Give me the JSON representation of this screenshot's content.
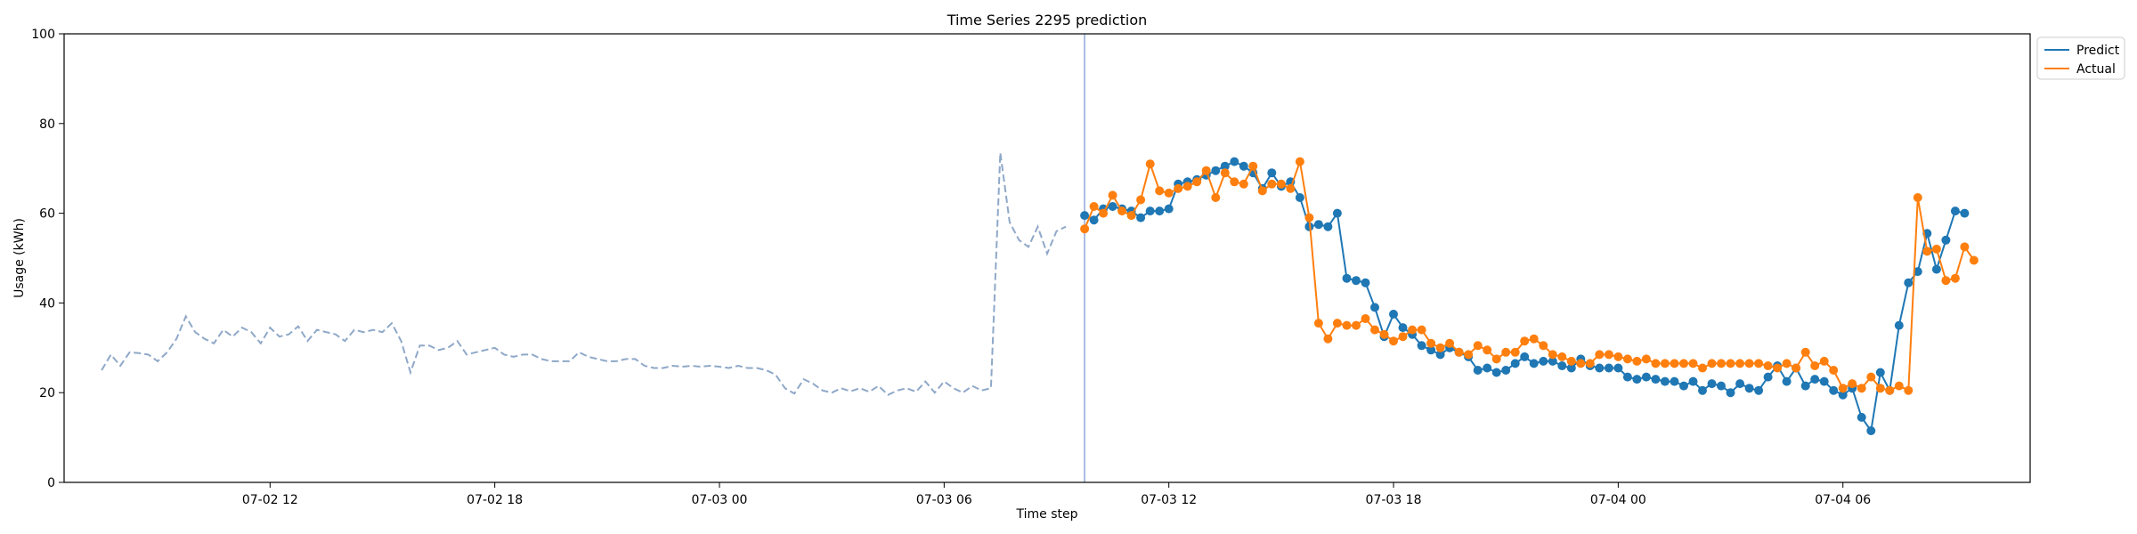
{
  "chart_data": {
    "type": "line",
    "title": "Time Series 2295 prediction",
    "xlabel": "Time step",
    "ylabel": "Usage (kWh)",
    "ylim": [
      0,
      100
    ],
    "yticks": [
      0,
      20,
      40,
      60,
      80,
      100
    ],
    "x_range": [
      "2024-07-02 06:30",
      "2024-07-04 11:00"
    ],
    "xticks": [
      {
        "t": "2024-07-02 12:00",
        "label": "07-02 12"
      },
      {
        "t": "2024-07-02 18:00",
        "label": "07-02 18"
      },
      {
        "t": "2024-07-03 00:00",
        "label": "07-03 00"
      },
      {
        "t": "2024-07-03 06:00",
        "label": "07-03 06"
      },
      {
        "t": "2024-07-03 12:00",
        "label": "07-03 12"
      },
      {
        "t": "2024-07-03 18:00",
        "label": "07-03 18"
      },
      {
        "t": "2024-07-04 00:00",
        "label": "07-04 00"
      },
      {
        "t": "2024-07-04 06:00",
        "label": "07-04 06"
      }
    ],
    "legend_position": "upper-right-outside",
    "grid": false,
    "forecast_start": "2024-07-03 09:45",
    "history": {
      "color": "#8fa8c8",
      "start": "2024-07-02 07:30",
      "step_minutes": 15,
      "values": [
        25,
        28.5,
        26,
        29,
        28.8,
        28.5,
        27,
        29,
        32,
        37,
        33.5,
        32,
        31,
        34,
        32.5,
        34.5,
        33.5,
        31,
        34.5,
        32.5,
        33,
        34.8,
        31.5,
        34,
        33.5,
        33,
        31.5,
        34,
        33.5,
        34,
        33.5,
        35.5,
        31.5,
        24.5,
        30.5,
        30.5,
        29.5,
        30,
        31.5,
        28.5,
        29,
        29.5,
        30,
        28.5,
        28,
        28.5,
        28.5,
        27.5,
        27,
        27,
        27,
        29,
        28,
        27.5,
        27,
        27,
        27.5,
        27.5,
        26,
        25.5,
        25.5,
        26,
        25.8,
        26,
        25.8,
        26,
        25.8,
        25.5,
        26,
        25.5,
        25.5,
        25,
        24,
        21,
        19.8,
        23,
        22,
        20.5,
        20,
        21,
        20.3,
        21,
        20.2,
        21.5,
        19.5,
        20.5,
        21,
        20.2,
        22.5,
        20,
        22.5,
        21,
        20,
        21.5,
        20.5,
        21,
        73.5,
        58,
        54,
        52.5,
        57,
        51,
        56,
        57
      ]
    },
    "series": [
      {
        "name": "Predict",
        "color": "#1f77b4",
        "start": "2024-07-03 09:45",
        "step_minutes": 15,
        "values": [
          59.5,
          58.5,
          61,
          61.5,
          61,
          60.5,
          59,
          60.5,
          60.5,
          61,
          66.5,
          67,
          67.5,
          68.5,
          69.5,
          70.5,
          71.5,
          70.5,
          69,
          65.5,
          69,
          66,
          67,
          63.5,
          57,
          57.5,
          57,
          60,
          45.5,
          45,
          44.5,
          39,
          32.5,
          37.5,
          34.5,
          33,
          30.5,
          29.5,
          28.5,
          30,
          29,
          28,
          25,
          25.5,
          24.5,
          25,
          26.5,
          28,
          26.5,
          27,
          27,
          26,
          25.5,
          27.5,
          26,
          25.5,
          25.5,
          25.5,
          23.5,
          23,
          23.5,
          23,
          22.5,
          22.5,
          21.5,
          22.5,
          20.5,
          22,
          21.5,
          20,
          22,
          21,
          20.5,
          23.5,
          26,
          22.5,
          25.5,
          21.5,
          23,
          22.5,
          20.5,
          19.5,
          21,
          14.5,
          11.5,
          24.5,
          20.5,
          35,
          44.5,
          47,
          55.5,
          47.5,
          54,
          60.5,
          60
        ]
      },
      {
        "name": "Actual",
        "color": "#ff7f0e",
        "start": "2024-07-03 09:45",
        "step_minutes": 15,
        "values": [
          56.5,
          61.5,
          60,
          64,
          60.5,
          59.5,
          63,
          71,
          65,
          64.5,
          65.5,
          66,
          67,
          69.5,
          63.5,
          69,
          67,
          66.5,
          70.5,
          65,
          66.5,
          66.5,
          65.5,
          71.5,
          59,
          35.5,
          32,
          35.5,
          35,
          35,
          36.5,
          34,
          33,
          31.5,
          32.5,
          34,
          34,
          31,
          30,
          31,
          29,
          28.5,
          30.5,
          29.5,
          27.5,
          29,
          29,
          31.5,
          32,
          30.5,
          28.5,
          28,
          27,
          26.5,
          26.5,
          28.5,
          28.5,
          28,
          27.5,
          27,
          27.5,
          26.5,
          26.5,
          26.5,
          26.5,
          26.5,
          25.5,
          26.5,
          26.5,
          26.5,
          26.5,
          26.5,
          26.5,
          26,
          25.5,
          26.5,
          25.5,
          29,
          26,
          27,
          25,
          21,
          22,
          21,
          23.5,
          21,
          20.5,
          21.5,
          20.5,
          63.5,
          51.5,
          52,
          45,
          45.5,
          52.5,
          49.5
        ]
      }
    ]
  }
}
